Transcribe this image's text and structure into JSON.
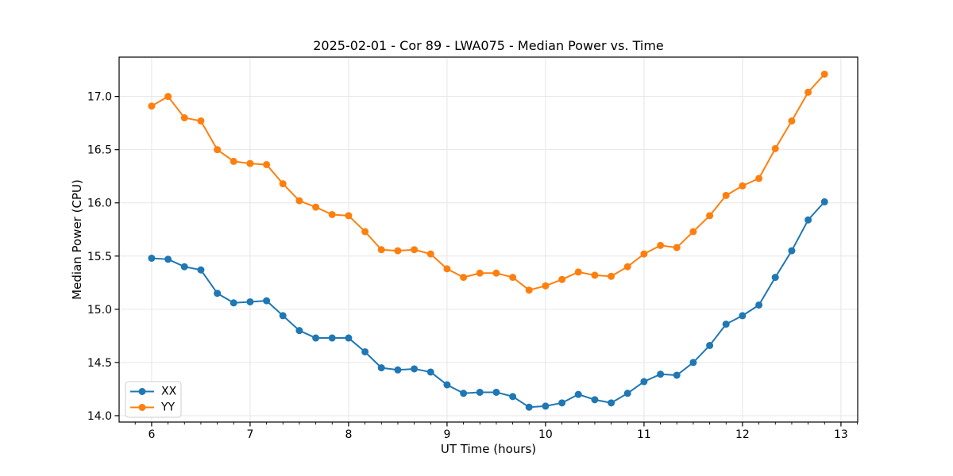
{
  "figure": {
    "background": "#ffffff",
    "spine_color": "#000000",
    "grid_color": "#e6e6e6"
  },
  "chart_data": {
    "type": "line",
    "title": "2025-02-01 - Cor 89 - LWA075 - Median Power vs. Time",
    "xlabel": "UT Time (hours)",
    "ylabel": "Median Power (CPU)",
    "xlim": [
      5.67,
      13.17
    ],
    "ylim": [
      13.94,
      17.37
    ],
    "x_ticks": [
      6,
      7,
      8,
      9,
      10,
      11,
      12,
      13
    ],
    "y_ticks": [
      14.0,
      14.5,
      15.0,
      15.5,
      16.0,
      16.5,
      17.0
    ],
    "x_minor_tick_interval": 0.16667,
    "grid": true,
    "legend_position": "lower left",
    "marker": "circle",
    "x": [
      6.0,
      6.167,
      6.333,
      6.5,
      6.667,
      6.833,
      7.0,
      7.167,
      7.333,
      7.5,
      7.667,
      7.833,
      8.0,
      8.167,
      8.333,
      8.5,
      8.667,
      8.833,
      9.0,
      9.167,
      9.333,
      9.5,
      9.667,
      9.833,
      10.0,
      10.167,
      10.333,
      10.5,
      10.667,
      10.833,
      11.0,
      11.167,
      11.333,
      11.5,
      11.667,
      11.833,
      12.0,
      12.167,
      12.333,
      12.5,
      12.667,
      12.833
    ],
    "series": [
      {
        "name": "XX",
        "color": "#1f77b4",
        "values": [
          15.48,
          15.47,
          15.4,
          15.37,
          15.15,
          15.06,
          15.07,
          15.08,
          14.94,
          14.8,
          14.73,
          14.73,
          14.73,
          14.6,
          14.45,
          14.43,
          14.44,
          14.41,
          14.29,
          14.21,
          14.22,
          14.22,
          14.18,
          14.08,
          14.09,
          14.12,
          14.2,
          14.15,
          14.12,
          14.21,
          14.32,
          14.39,
          14.38,
          14.5,
          14.66,
          14.86,
          14.94,
          15.04,
          15.3,
          15.55,
          15.84,
          16.01
        ]
      },
      {
        "name": "YY",
        "color": "#ff7f0e",
        "values": [
          16.91,
          17.0,
          16.8,
          16.77,
          16.5,
          16.39,
          16.37,
          16.36,
          16.18,
          16.02,
          15.96,
          15.89,
          15.88,
          15.73,
          15.56,
          15.55,
          15.56,
          15.52,
          15.38,
          15.3,
          15.34,
          15.34,
          15.3,
          15.18,
          15.22,
          15.28,
          15.35,
          15.32,
          15.31,
          15.4,
          15.52,
          15.6,
          15.58,
          15.73,
          15.88,
          16.07,
          16.16,
          16.23,
          16.51,
          16.77,
          17.04,
          17.21
        ]
      }
    ]
  }
}
